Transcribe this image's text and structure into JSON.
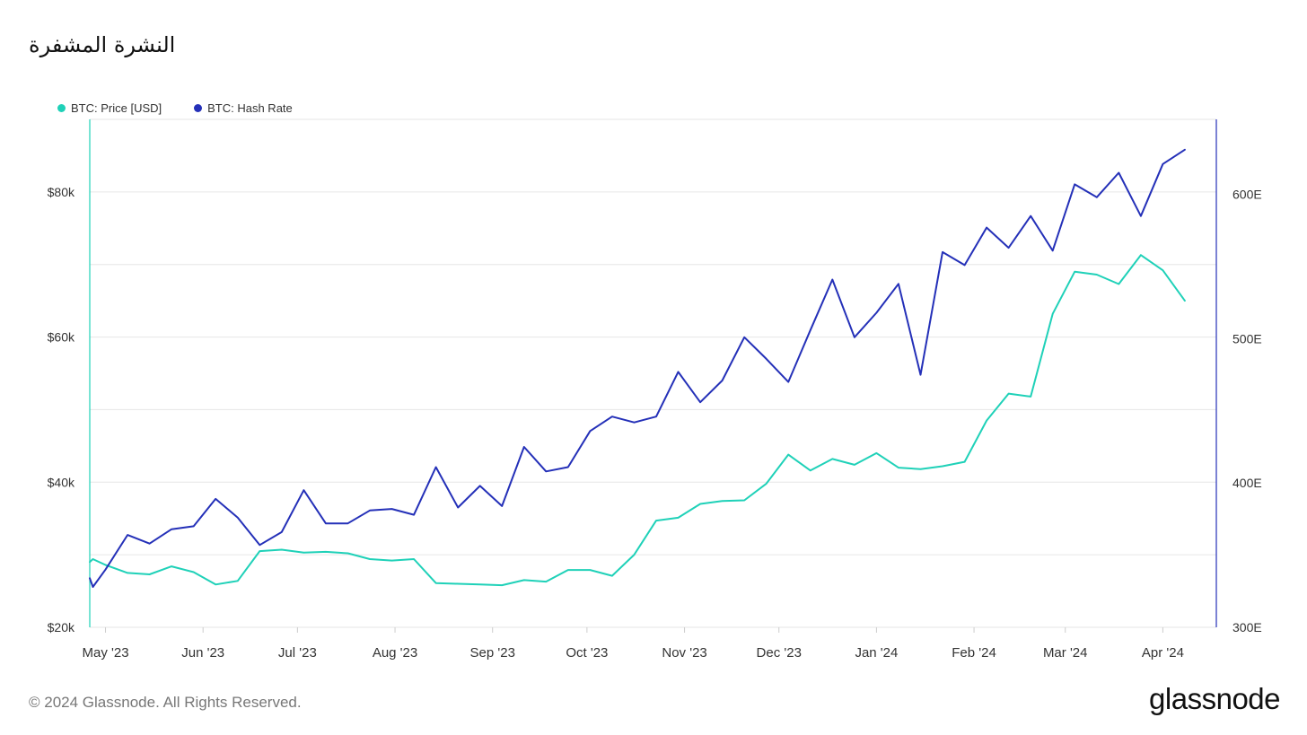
{
  "page": {
    "title": "النشرة المشفرة",
    "copyright": "© 2024 Glassnode. All Rights Reserved.",
    "logo": "glassnode"
  },
  "colors": {
    "price": "#1fd1b8",
    "hash_rate": "#2430b8",
    "grid": "#e6e6e6"
  },
  "legend": [
    {
      "label": "BTC: Price [USD]",
      "color": "#1fd1b8"
    },
    {
      "label": "BTC: Hash Rate",
      "color": "#2430b8"
    }
  ],
  "chart_data": {
    "type": "line",
    "title": "",
    "xlabel": "",
    "ylabel": "",
    "x_range": [
      "2023-04-26",
      "2024-04-18"
    ],
    "x_ticks": [
      {
        "label": "May '23",
        "date": "2023-05-01"
      },
      {
        "label": "Jun '23",
        "date": "2023-06-01"
      },
      {
        "label": "Jul '23",
        "date": "2023-07-01"
      },
      {
        "label": "Aug '23",
        "date": "2023-08-01"
      },
      {
        "label": "Sep '23",
        "date": "2023-09-01"
      },
      {
        "label": "Oct '23",
        "date": "2023-10-01"
      },
      {
        "label": "Nov '23",
        "date": "2023-11-01"
      },
      {
        "label": "Dec '23",
        "date": "2023-12-01"
      },
      {
        "label": "Jan '24",
        "date": "2024-01-01"
      },
      {
        "label": "Feb '24",
        "date": "2024-02-01"
      },
      {
        "label": "Mar '24",
        "date": "2024-03-01"
      },
      {
        "label": "Apr '24",
        "date": "2024-04-01"
      }
    ],
    "y_left": {
      "ylim": [
        20000,
        90000
      ],
      "ticks": [
        {
          "label": "$20k",
          "value": 20000
        },
        {
          "label": "$40k",
          "value": 40000
        },
        {
          "label": "$60k",
          "value": 60000
        },
        {
          "label": "$80k",
          "value": 80000
        }
      ],
      "grid_values": [
        20000,
        30000,
        40000,
        50000,
        60000,
        70000,
        80000,
        90000
      ]
    },
    "y_right": {
      "ylim": [
        300,
        652
      ],
      "unit": "EH/s",
      "ticks": [
        {
          "label": "300E",
          "value": 300
        },
        {
          "label": "400E",
          "value": 400
        },
        {
          "label": "500E",
          "value": 500
        },
        {
          "label": "600E",
          "value": 600
        }
      ]
    },
    "grid": true,
    "legend_position": "top-left",
    "series": [
      {
        "name": "BTC: Price [USD]",
        "axis": "left",
        "color": "#1fd1b8",
        "points": [
          [
            "2023-04-26",
            29000
          ],
          [
            "2023-04-27",
            29400
          ],
          [
            "2023-05-01",
            28600
          ],
          [
            "2023-05-08",
            27500
          ],
          [
            "2023-05-15",
            27300
          ],
          [
            "2023-05-22",
            28400
          ],
          [
            "2023-05-29",
            27600
          ],
          [
            "2023-06-05",
            25900
          ],
          [
            "2023-06-12",
            26400
          ],
          [
            "2023-06-19",
            30500
          ],
          [
            "2023-06-26",
            30700
          ],
          [
            "2023-07-03",
            30300
          ],
          [
            "2023-07-10",
            30400
          ],
          [
            "2023-07-17",
            30200
          ],
          [
            "2023-07-24",
            29400
          ],
          [
            "2023-07-31",
            29200
          ],
          [
            "2023-08-07",
            29400
          ],
          [
            "2023-08-14",
            26100
          ],
          [
            "2023-08-21",
            26000
          ],
          [
            "2023-08-28",
            25900
          ],
          [
            "2023-09-04",
            25800
          ],
          [
            "2023-09-11",
            26500
          ],
          [
            "2023-09-18",
            26300
          ],
          [
            "2023-09-25",
            27900
          ],
          [
            "2023-10-02",
            27900
          ],
          [
            "2023-10-09",
            27100
          ],
          [
            "2023-10-16",
            30000
          ],
          [
            "2023-10-23",
            34700
          ],
          [
            "2023-10-30",
            35100
          ],
          [
            "2023-11-06",
            37000
          ],
          [
            "2023-11-13",
            37400
          ],
          [
            "2023-11-20",
            37500
          ],
          [
            "2023-11-27",
            39800
          ],
          [
            "2023-12-04",
            43800
          ],
          [
            "2023-12-11",
            41600
          ],
          [
            "2023-12-18",
            43200
          ],
          [
            "2023-12-25",
            42400
          ],
          [
            "2024-01-01",
            44000
          ],
          [
            "2024-01-08",
            42000
          ],
          [
            "2024-01-15",
            41800
          ],
          [
            "2024-01-22",
            42200
          ],
          [
            "2024-01-29",
            42800
          ],
          [
            "2024-02-05",
            48500
          ],
          [
            "2024-02-12",
            52200
          ],
          [
            "2024-02-19",
            51800
          ],
          [
            "2024-02-26",
            63200
          ],
          [
            "2024-03-04",
            69000
          ],
          [
            "2024-03-11",
            68600
          ],
          [
            "2024-03-18",
            67300
          ],
          [
            "2024-03-25",
            71300
          ],
          [
            "2024-04-01",
            69200
          ],
          [
            "2024-04-08",
            65000
          ]
        ]
      },
      {
        "name": "BTC: Hash Rate",
        "axis": "right",
        "color": "#2430b8",
        "points": [
          [
            "2023-04-26",
            334
          ],
          [
            "2023-04-27",
            328
          ],
          [
            "2023-05-01",
            340
          ],
          [
            "2023-05-08",
            364
          ],
          [
            "2023-05-15",
            358
          ],
          [
            "2023-05-22",
            368
          ],
          [
            "2023-05-29",
            370
          ],
          [
            "2023-06-05",
            389
          ],
          [
            "2023-06-12",
            376
          ],
          [
            "2023-06-19",
            357
          ],
          [
            "2023-06-26",
            366
          ],
          [
            "2023-07-03",
            395
          ],
          [
            "2023-07-10",
            372
          ],
          [
            "2023-07-17",
            372
          ],
          [
            "2023-07-24",
            381
          ],
          [
            "2023-07-31",
            382
          ],
          [
            "2023-08-07",
            378
          ],
          [
            "2023-08-14",
            411
          ],
          [
            "2023-08-21",
            383
          ],
          [
            "2023-08-28",
            398
          ],
          [
            "2023-09-04",
            384
          ],
          [
            "2023-09-11",
            425
          ],
          [
            "2023-09-18",
            408
          ],
          [
            "2023-09-25",
            411
          ],
          [
            "2023-10-02",
            436
          ],
          [
            "2023-10-09",
            446
          ],
          [
            "2023-10-16",
            442
          ],
          [
            "2023-10-23",
            446
          ],
          [
            "2023-10-30",
            477
          ],
          [
            "2023-11-06",
            456
          ],
          [
            "2023-11-13",
            471
          ],
          [
            "2023-11-20",
            501
          ],
          [
            "2023-11-27",
            486
          ],
          [
            "2023-12-04",
            470
          ],
          [
            "2023-12-11",
            506
          ],
          [
            "2023-12-18",
            541
          ],
          [
            "2023-12-25",
            501
          ],
          [
            "2024-01-01",
            518
          ],
          [
            "2024-01-08",
            538
          ],
          [
            "2024-01-15",
            475
          ],
          [
            "2024-01-22",
            560
          ],
          [
            "2024-01-29",
            551
          ],
          [
            "2024-02-05",
            577
          ],
          [
            "2024-02-12",
            563
          ],
          [
            "2024-02-19",
            585
          ],
          [
            "2024-02-26",
            561
          ],
          [
            "2024-03-04",
            607
          ],
          [
            "2024-03-11",
            598
          ],
          [
            "2024-03-18",
            615
          ],
          [
            "2024-03-25",
            585
          ],
          [
            "2024-04-01",
            621
          ],
          [
            "2024-04-08",
            631
          ]
        ]
      }
    ]
  }
}
